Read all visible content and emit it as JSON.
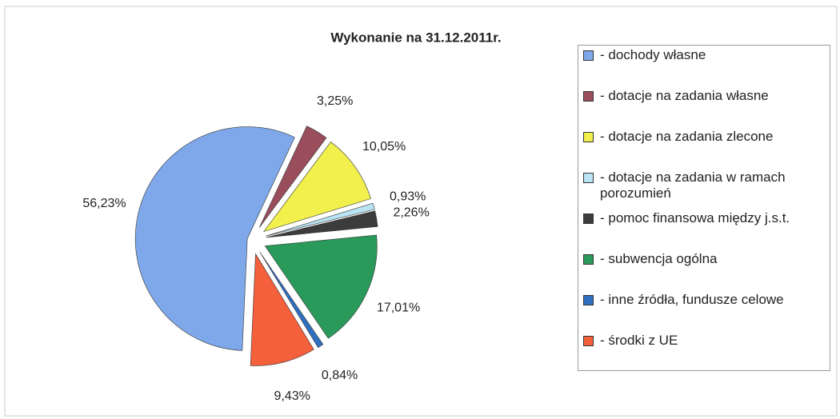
{
  "chart_data": {
    "type": "pie",
    "title": "Wykonanie na 31.12.2011r.",
    "categories": [
      "- dochody własne",
      "- dotacje na zadania własne",
      "- dotacje na zadania zlecone",
      "- dotacje na zadania w ramach porozumień",
      "- pomoc finansowa między j.s.t.",
      "- subwencja ogólna",
      "- inne źródła, fundusze celowe",
      "- środki z UE"
    ],
    "values": [
      56.23,
      3.25,
      10.05,
      0.93,
      2.26,
      17.01,
      0.84,
      9.43
    ],
    "value_labels": [
      "56,23%",
      "3,25%",
      "10,05%",
      "0,93%",
      "2,26%",
      "17,01%",
      "0,84%",
      "9,43%"
    ],
    "colors": [
      "#7ea8ea",
      "#9a4e5c",
      "#f2f04c",
      "#b8e4f4",
      "#3c3c3c",
      "#2a9a5a",
      "#2f6fc0",
      "#f4603c"
    ],
    "legend": "right"
  }
}
